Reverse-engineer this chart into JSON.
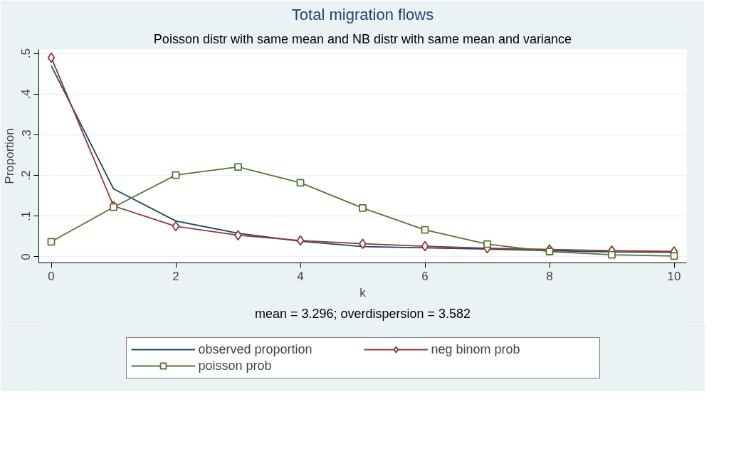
{
  "chart_data": {
    "type": "line",
    "title": "Total migration flows",
    "subtitle": "Poisson distr with same mean and NB distr with same mean and variance",
    "xlabel": "k",
    "ylabel": "Proportion",
    "annotations": [
      "mean = 3.296; overdispersion = 3.582"
    ],
    "x": [
      0,
      1,
      2,
      3,
      4,
      5,
      6,
      7,
      8,
      9,
      10
    ],
    "xlim": [
      -0.2,
      10.2
    ],
    "xticks": [
      0,
      2,
      4,
      6,
      8,
      10
    ],
    "ylim": [
      -0.015,
      0.51
    ],
    "yticks": [
      0,
      {
        "value": 0.1,
        "label": ".1"
      },
      {
        "value": 0.2,
        "label": ".2"
      },
      {
        "value": 0.3,
        "label": ".3"
      },
      {
        "value": 0.4,
        "label": ".4"
      },
      {
        "value": 0.5,
        "label": ".5"
      }
    ],
    "grid": "y",
    "legend": "bottom",
    "series": [
      {
        "name": "observed proportion",
        "color": "#1a476f",
        "marker": "none",
        "values": [
          0.47,
          0.167,
          0.088,
          0.058,
          0.038,
          0.025,
          0.022,
          0.019,
          0.015,
          0.012,
          0.011
        ]
      },
      {
        "name": "neg binom prob",
        "color": "#90353b",
        "marker": "diamond",
        "values": [
          0.49,
          0.125,
          0.075,
          0.053,
          0.04,
          0.032,
          0.026,
          0.021,
          0.018,
          0.015,
          0.013
        ]
      },
      {
        "name": "poisson prob",
        "color": "#55752f",
        "marker": "square",
        "values": [
          0.037,
          0.122,
          0.201,
          0.221,
          0.182,
          0.12,
          0.066,
          0.031,
          0.013,
          0.005,
          0.002
        ]
      }
    ]
  }
}
